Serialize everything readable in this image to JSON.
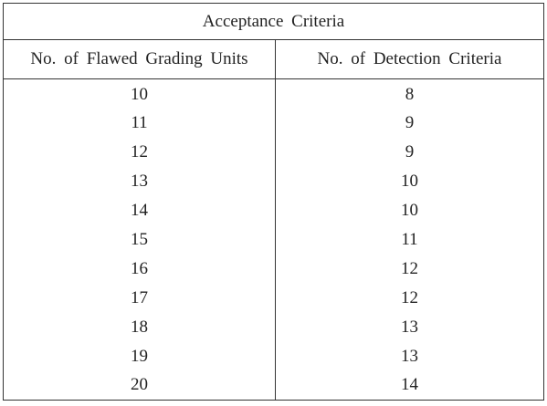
{
  "table": {
    "title": "Acceptance Criteria",
    "header": [
      "No. of Flawed Grading Units",
      "No. of Detection Criteria"
    ],
    "rows": [
      [
        10,
        8
      ],
      [
        11,
        9
      ],
      [
        12,
        9
      ],
      [
        13,
        10
      ],
      [
        14,
        10
      ],
      [
        15,
        11
      ],
      [
        16,
        12
      ],
      [
        17,
        12
      ],
      [
        18,
        13
      ],
      [
        19,
        13
      ],
      [
        20,
        14
      ]
    ]
  }
}
